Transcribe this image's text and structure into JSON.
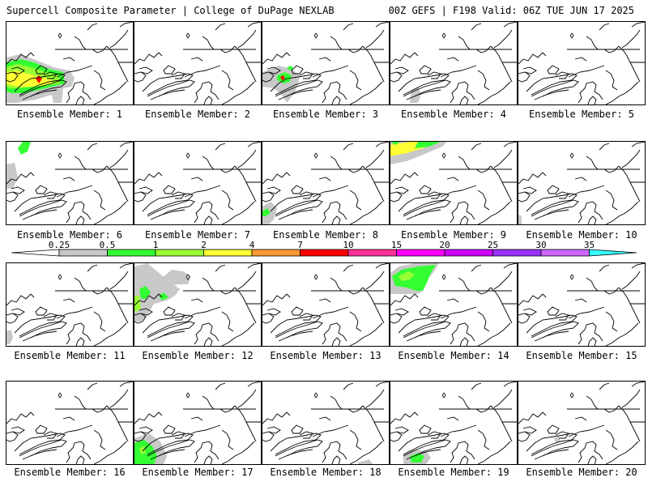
{
  "header": {
    "left": "Supercell Composite Parameter | College of DuPage NEXLAB",
    "right": "00Z GEFS | F198 Valid: 06Z TUE JUN 17 2025"
  },
  "legend": {
    "levels": [
      "0.25",
      "0.5",
      "1",
      "2",
      "4",
      "7",
      "10",
      "15",
      "20",
      "25",
      "30",
      "35"
    ],
    "colors": [
      "#c8c8c8",
      "#33ff33",
      "#99ff33",
      "#ffff33",
      "#ff9933",
      "#ff0000",
      "#ff3399",
      "#ff00ff",
      "#cc00ff",
      "#9933ff",
      "#cc66ff",
      "#33ffff"
    ]
  },
  "members": [
    {
      "label": "Ensemble Member: 1",
      "id": 1
    },
    {
      "label": "Ensemble Member: 2",
      "id": 2
    },
    {
      "label": "Ensemble Member: 3",
      "id": 3
    },
    {
      "label": "Ensemble Member: 4",
      "id": 4
    },
    {
      "label": "Ensemble Member: 5",
      "id": 5
    },
    {
      "label": "Ensemble Member: 6",
      "id": 6
    },
    {
      "label": "Ensemble Member: 7",
      "id": 7
    },
    {
      "label": "Ensemble Member: 8",
      "id": 8
    },
    {
      "label": "Ensemble Member: 9",
      "id": 9
    },
    {
      "label": "Ensemble Member: 10",
      "id": 10
    },
    {
      "label": "Ensemble Member: 11",
      "id": 11
    },
    {
      "label": "Ensemble Member: 12",
      "id": 12
    },
    {
      "label": "Ensemble Member: 13",
      "id": 13
    },
    {
      "label": "Ensemble Member: 14",
      "id": 14
    },
    {
      "label": "Ensemble Member: 15",
      "id": 15
    },
    {
      "label": "Ensemble Member: 16",
      "id": 16
    },
    {
      "label": "Ensemble Member: 17",
      "id": 17
    },
    {
      "label": "Ensemble Member: 18",
      "id": 18
    },
    {
      "label": "Ensemble Member: 19",
      "id": 19
    },
    {
      "label": "Ensemble Member: 20",
      "id": 20
    }
  ]
}
